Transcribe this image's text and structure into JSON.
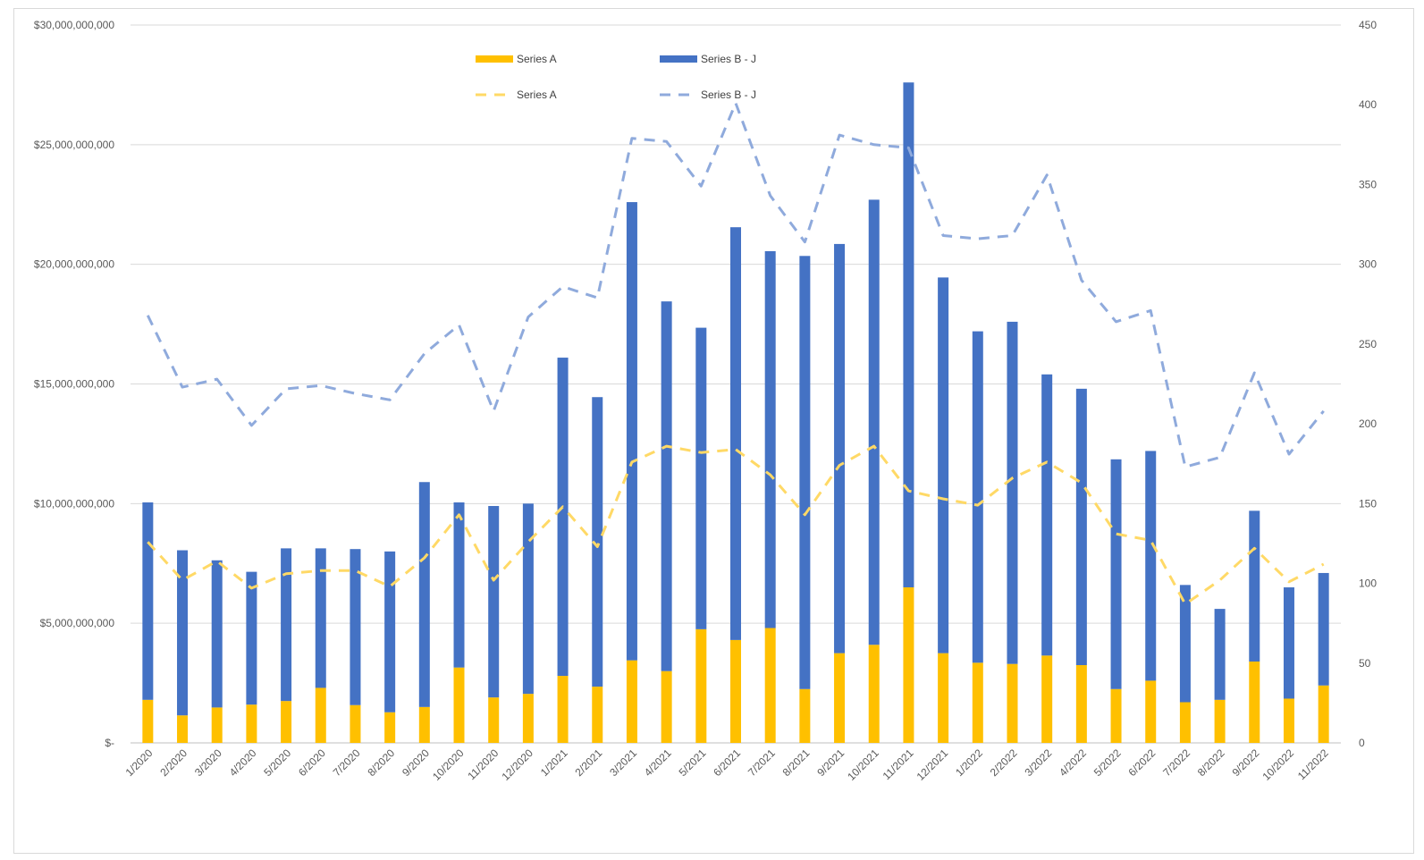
{
  "chart_data": {
    "type": "bar",
    "title": "",
    "xlabel": "",
    "ylabel": "",
    "y2label": "",
    "categories": [
      "1/2020",
      "2/2020",
      "3/2020",
      "4/2020",
      "5/2020",
      "6/2020",
      "7/2020",
      "8/2020",
      "9/2020",
      "10/2020",
      "11/2020",
      "12/2020",
      "1/2021",
      "2/2021",
      "3/2021",
      "4/2021",
      "5/2021",
      "6/2021",
      "7/2021",
      "8/2021",
      "9/2021",
      "10/2021",
      "11/2021",
      "12/2021",
      "1/2022",
      "2/2022",
      "3/2022",
      "4/2022",
      "5/2022",
      "6/2022",
      "7/2022",
      "8/2022",
      "9/2022",
      "10/2022",
      "11/2022"
    ],
    "bar_series": [
      {
        "name": "Series A",
        "color": "#ffc000",
        "axis": "left",
        "values": [
          1800000000,
          1150000000,
          1480000000,
          1600000000,
          1750000000,
          2300000000,
          1580000000,
          1280000000,
          1500000000,
          3150000000,
          1900000000,
          2050000000,
          2800000000,
          2350000000,
          3450000000,
          3000000000,
          4750000000,
          4300000000,
          4800000000,
          2250000000,
          3750000000,
          4100000000,
          6500000000,
          3750000000,
          3350000000,
          3300000000,
          3650000000,
          3250000000,
          2250000000,
          2600000000,
          1700000000,
          1800000000,
          3400000000,
          1850000000,
          2400000000
        ]
      },
      {
        "name": "Series B - J",
        "color": "#4472c4",
        "axis": "left",
        "values": [
          8250000000,
          6900000000,
          6150000000,
          5550000000,
          6380000000,
          5830000000,
          6520000000,
          6720000000,
          9400000000,
          6900000000,
          8000000000,
          7950000000,
          13300000000,
          12100000000,
          19150000000,
          15450000000,
          12600000000,
          17250000000,
          15750000000,
          18100000000,
          17100000000,
          18600000000,
          21100000000,
          15700000000,
          13850000000,
          14300000000,
          11750000000,
          11550000000,
          9600000000,
          9600000000,
          4900000000,
          3800000000,
          6300000000,
          4650000000,
          4700000000
        ]
      }
    ],
    "line_series": [
      {
        "name": "Series A",
        "color": "#ffd966",
        "axis": "right",
        "dash": "dashed",
        "values": [
          126,
          102,
          114,
          97,
          106,
          108,
          108,
          98,
          116,
          143,
          102,
          126,
          148,
          123,
          176,
          186,
          182,
          184,
          168,
          143,
          174,
          186,
          158,
          153,
          149,
          166,
          176,
          163,
          131,
          127,
          87,
          102,
          122,
          101,
          112
        ]
      },
      {
        "name": "Series B - J",
        "color": "#8faadc",
        "axis": "right",
        "dash": "dashed",
        "values": [
          268,
          223,
          228,
          199,
          222,
          224,
          219,
          215,
          244,
          262,
          208,
          267,
          286,
          279,
          379,
          377,
          349,
          401,
          343,
          314,
          381,
          375,
          373,
          318,
          316,
          318,
          356,
          290,
          264,
          271,
          173,
          179,
          232,
          181,
          208
        ]
      }
    ],
    "ylim": [
      0,
      30000000000
    ],
    "y2lim": [
      0,
      450
    ],
    "y_ticks": [
      "$-",
      "$5,000,000,000",
      "$10,000,000,000",
      "$15,000,000,000",
      "$20,000,000,000",
      "$25,000,000,000",
      "$30,000,000,000"
    ],
    "y_tick_values": [
      0,
      5000000000,
      10000000000,
      15000000000,
      20000000000,
      25000000000,
      30000000000
    ],
    "y2_ticks": [
      "0",
      "50",
      "100",
      "150",
      "200",
      "250",
      "300",
      "350",
      "400",
      "450"
    ],
    "y2_tick_values": [
      0,
      50,
      100,
      150,
      200,
      250,
      300,
      350,
      400,
      450
    ],
    "stacked": true,
    "grid": true,
    "legend_position": "top-center",
    "legend": [
      {
        "label": "Series A",
        "kind": "bar",
        "color": "#ffc000"
      },
      {
        "label": "Series B - J",
        "kind": "bar",
        "color": "#4472c4"
      },
      {
        "label": "Series A",
        "kind": "line",
        "color": "#ffd966"
      },
      {
        "label": "Series B - J",
        "kind": "line",
        "color": "#8faadc"
      }
    ]
  }
}
